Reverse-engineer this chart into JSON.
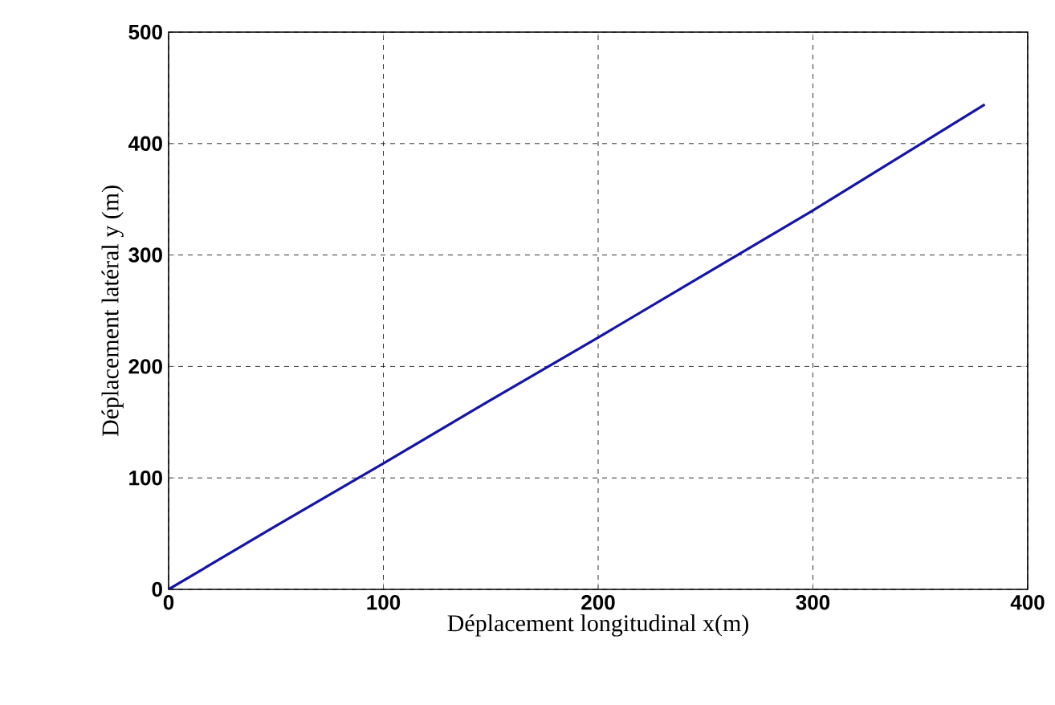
{
  "chart_data": {
    "type": "line",
    "xlabel": "Déplacement longitudinal x(m)",
    "ylabel": "Déplacement latéral y (m)",
    "x": [
      0,
      50,
      100,
      150,
      200,
      250,
      300,
      380
    ],
    "series": [
      {
        "color": "#1414a8",
        "values": [
          0,
          57,
          113,
          170,
          226,
          283,
          340,
          435
        ]
      }
    ],
    "xlim": [
      0,
      400
    ],
    "ylim": [
      0,
      500
    ],
    "xticks": [
      0,
      100,
      200,
      300,
      400
    ],
    "yticks": [
      0,
      100,
      200,
      300,
      400,
      500
    ],
    "grid": true,
    "line_style": "solid",
    "marker": "none"
  }
}
